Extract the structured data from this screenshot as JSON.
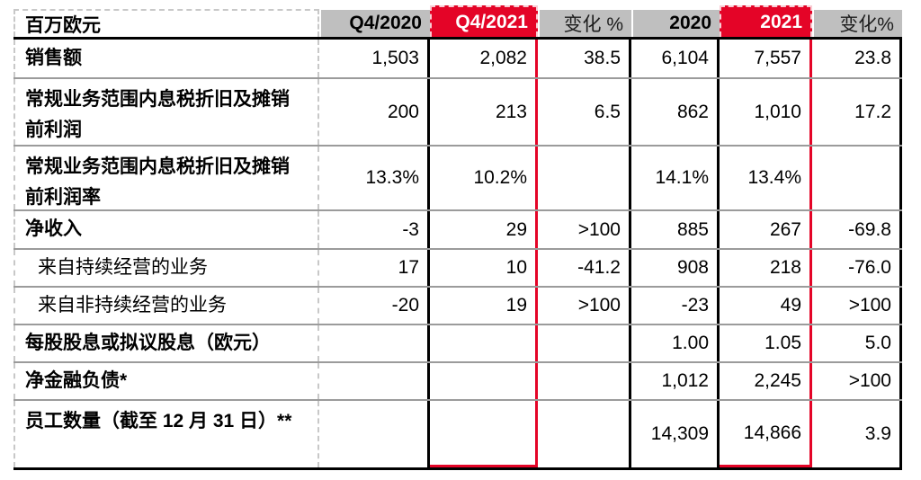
{
  "table": {
    "unit_label": "百万欧元",
    "columns": {
      "q4_2020": "Q4/2020",
      "q4_2021": "Q4/2021",
      "change_q": "变化 %",
      "fy_2020": "2020",
      "fy_2021": "2021",
      "change_y": "变化%"
    },
    "colors": {
      "highlight_red": "#e40427",
      "header_gray": "#bfbfbf",
      "divider_gray": "#9b9b9b",
      "dashed_border_gray": "#c8c8c8"
    },
    "rows": [
      {
        "label": "销售额",
        "values": [
          "1,503",
          "2,082",
          "38.5",
          "6,104",
          "7,557",
          "23.8"
        ]
      },
      {
        "label": "常规业务范围内息税折旧及摊销前利润",
        "values": [
          "200",
          "213",
          "6.5",
          "862",
          "1,010",
          "17.2"
        ]
      },
      {
        "label": "常规业务范围内息税折旧及摊销前利润率",
        "values": [
          "13.3%",
          "10.2%",
          "",
          "14.1%",
          "13.4%",
          ""
        ]
      },
      {
        "label": "净收入",
        "values": [
          "-3",
          "29",
          ">100",
          "885",
          "267",
          "-69.8"
        ]
      },
      {
        "label": "来自持续经营的业务",
        "values": [
          "17",
          "10",
          "-41.2",
          "908",
          "218",
          "-76.0"
        ]
      },
      {
        "label": "来自非持续经营的业务",
        "values": [
          "-20",
          "19",
          ">100",
          "-23",
          "49",
          ">100"
        ]
      },
      {
        "label": "每股股息或拟议股息（欧元）",
        "values": [
          "",
          "",
          "",
          "1.00",
          "1.05",
          "5.0"
        ]
      },
      {
        "label": "净金融负债*",
        "values": [
          "",
          "",
          "",
          "1,012",
          "2,245",
          ">100"
        ]
      },
      {
        "label": "员工数量（截至 12 月 31 日）**",
        "values": [
          "",
          "",
          "",
          "14,309",
          "14,866",
          "3.9"
        ]
      }
    ]
  }
}
